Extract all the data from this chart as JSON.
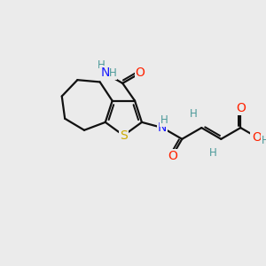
{
  "bg_color": "#ebebeb",
  "atom_colors": {
    "C": "#111111",
    "N": "#1a1aff",
    "O": "#ff2200",
    "S": "#ccaa00",
    "H": "#4a9999"
  },
  "bond_color": "#111111",
  "font_size_label": 10,
  "font_size_H": 8.5,
  "figsize": [
    3.0,
    3.0
  ],
  "dpi": 100,
  "lw": 1.6
}
